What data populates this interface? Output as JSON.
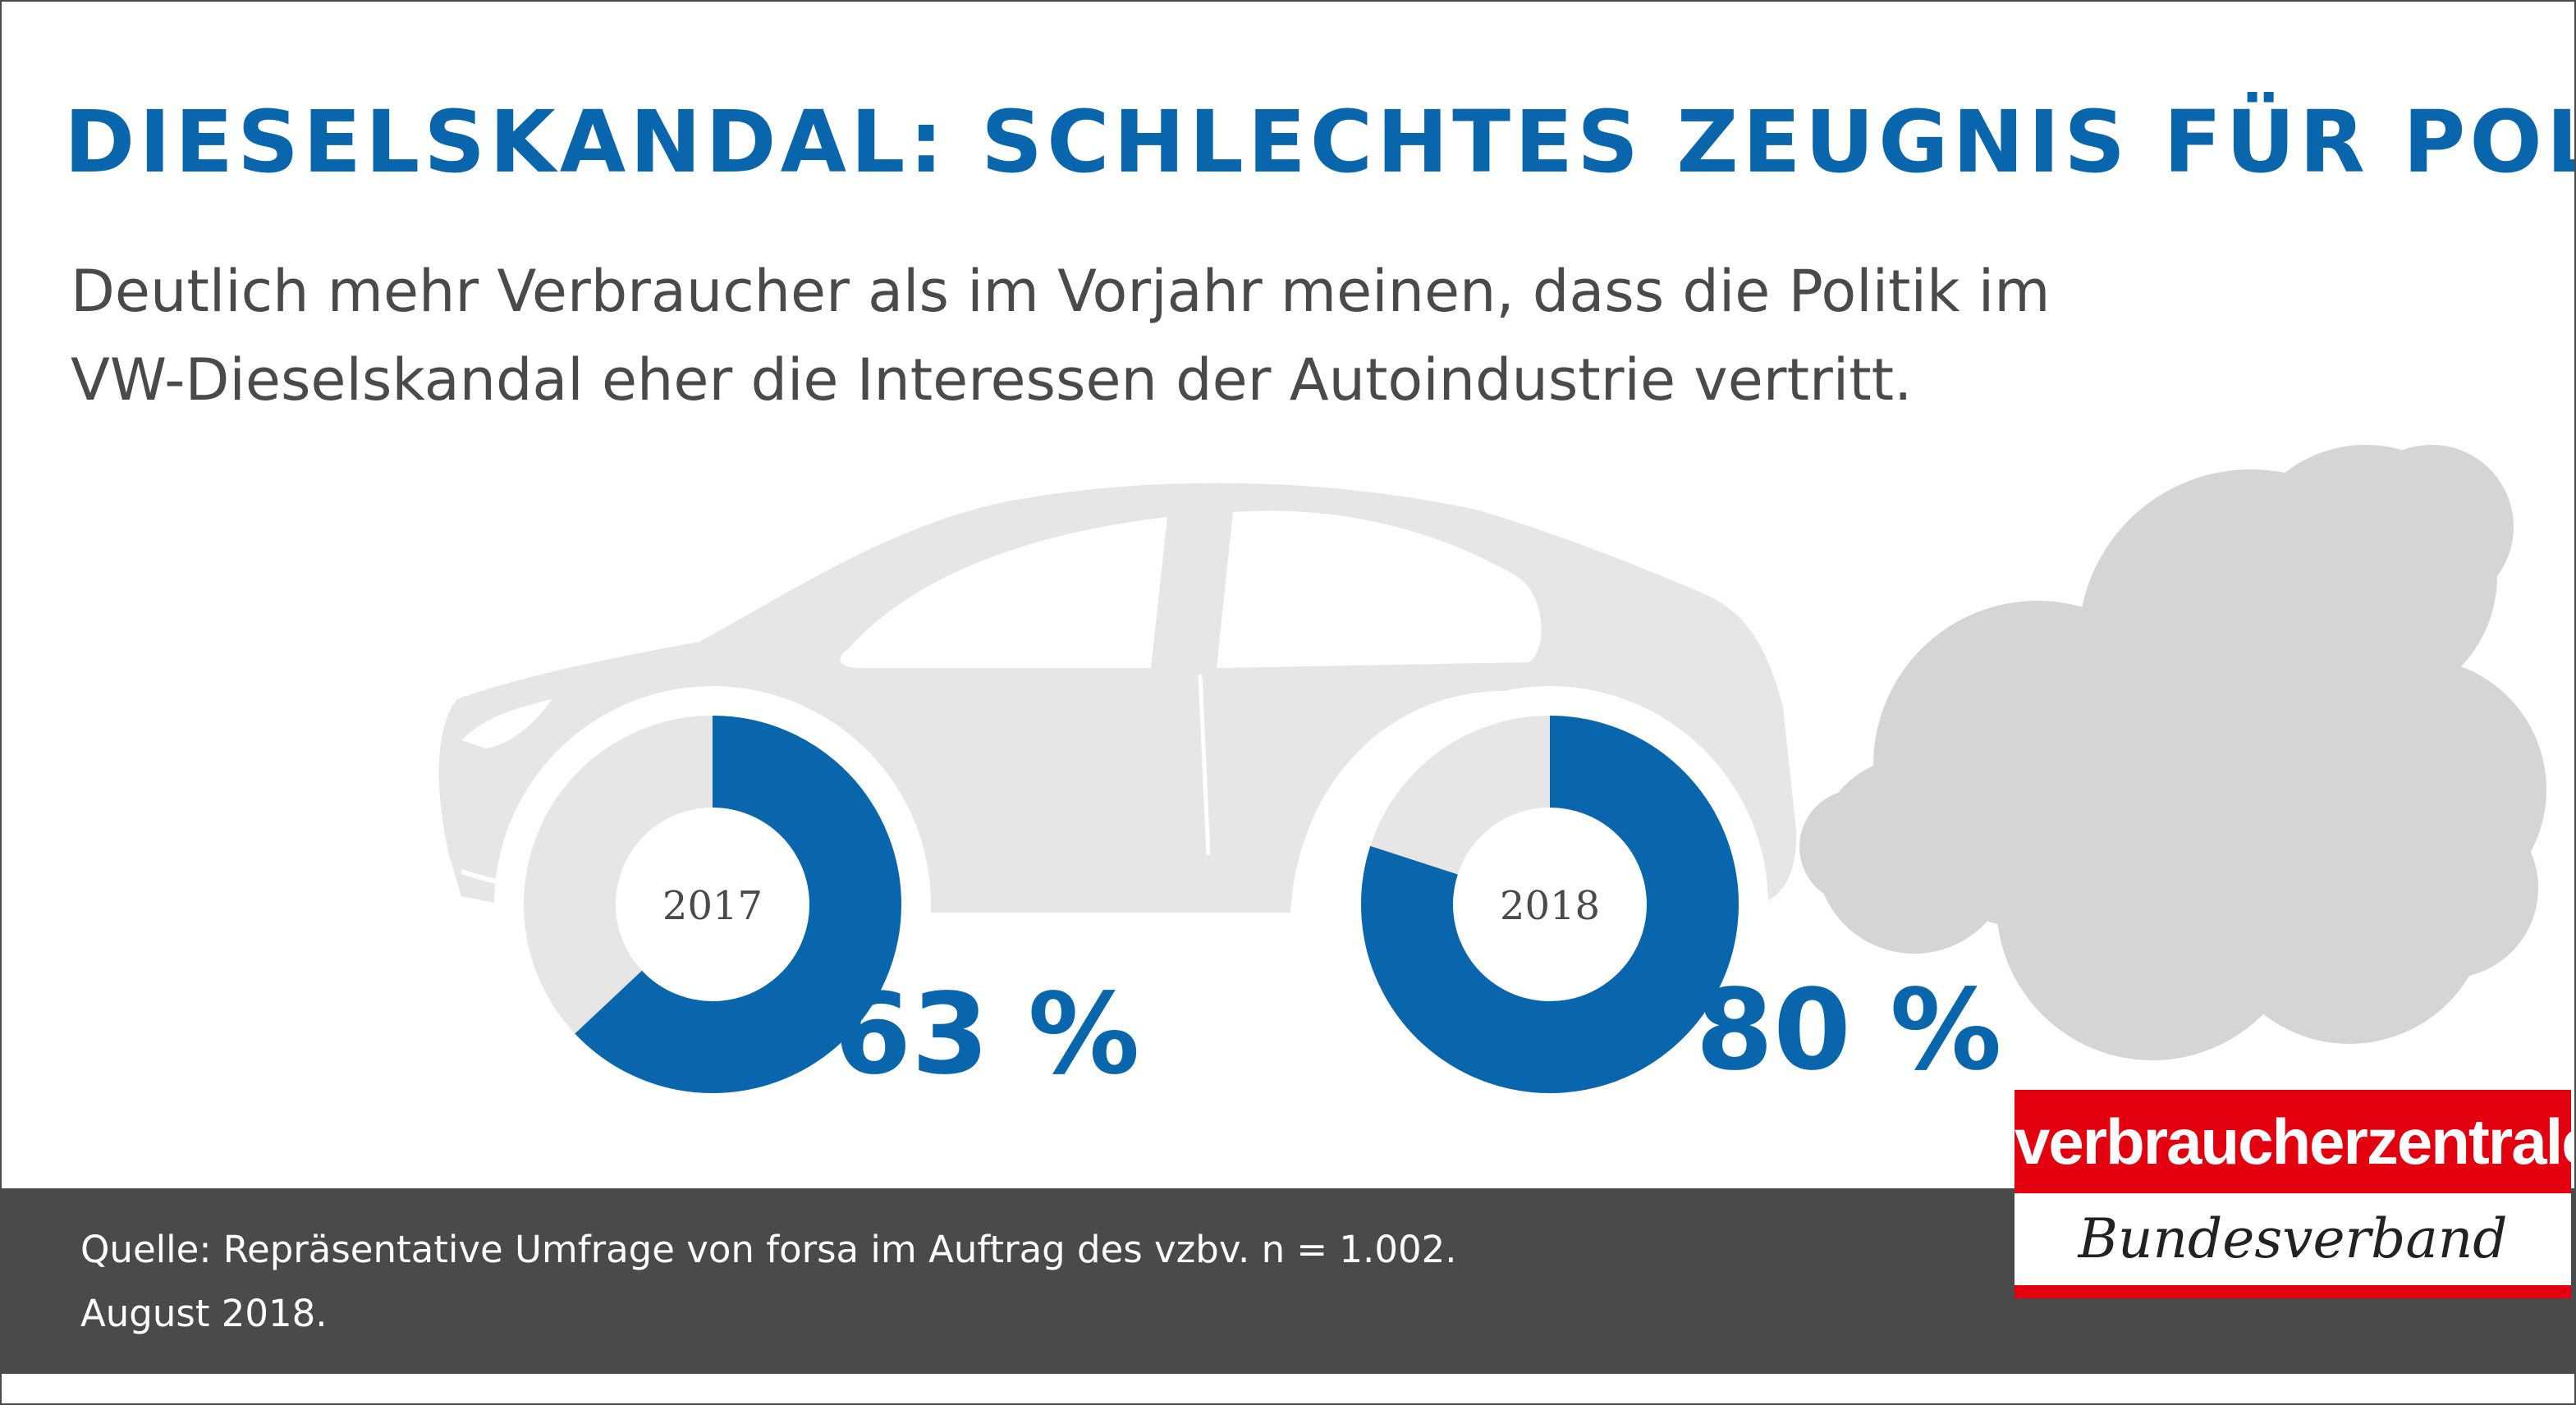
{
  "title": "DIESELSKANDAL: SCHLECHTES ZEUGNIS FÜR POLITIK",
  "subtitle": {
    "line1": "Deutlich mehr Verbraucher als im Vorjahr meinen, dass die Politik im",
    "line2": "VW-Dieselskandal eher die Interessen der Autoindustrie vertritt."
  },
  "colors": {
    "accent": "#0a66ac",
    "remainder": "#e6e6e6",
    "car": "#e6e6e6",
    "smoke": "#d5d5d5",
    "footer": "#4a4a4a",
    "brand_red": "#e3000f"
  },
  "chart_data": {
    "type": "donut",
    "title": "DIESELSKANDAL: SCHLECHTES ZEUGNIS FÜR POLITIK",
    "unit": "%",
    "series": [
      {
        "year": "2017",
        "value": 63,
        "label": "63 %"
      },
      {
        "year": "2018",
        "value": 80,
        "label": "80 %"
      }
    ]
  },
  "footer": {
    "source_line1": "Quelle: Repräsentative Umfrage von forsa im Auftrag des vzbv. n = 1.002.",
    "source_line2": "August 2018."
  },
  "logo": {
    "top": "verbraucherzentrale",
    "bottom": "Bundesverband"
  }
}
